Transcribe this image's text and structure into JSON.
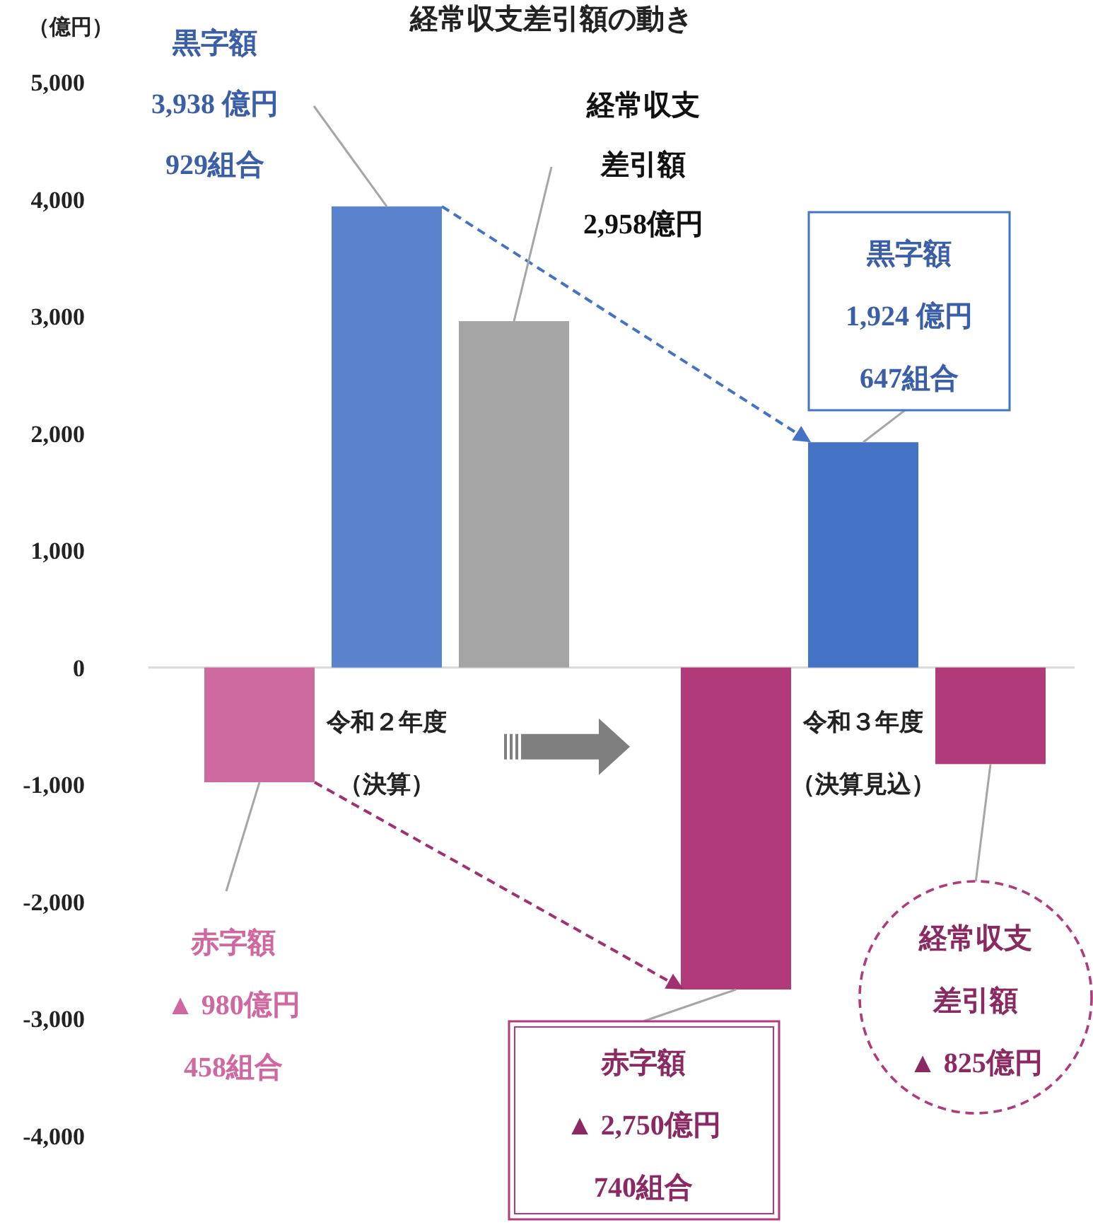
{
  "chart_data": {
    "type": "bar",
    "title": "経常収支差引額の動き",
    "ylabel": "（億円）",
    "categories": [
      "令和２年度（決算）",
      "令和３年度（決算見込）"
    ],
    "series": [
      {
        "colors": [
          "#cf6aa0",
          "#b03a7a"
        ],
        "values": [
          -980,
          -2750
        ]
      },
      {
        "colors": [
          "#5b82cc",
          "#4472c4"
        ],
        "values": [
          3938,
          1924
        ]
      },
      {
        "colors": [
          "#a5a5a5",
          "#b03a7a"
        ],
        "values": [
          2958,
          -825
        ]
      }
    ],
    "ylim": [
      -4000,
      5000
    ],
    "yticks": [
      {
        "value": -4000,
        "label": "-4,000"
      },
      {
        "value": -3000,
        "label": "-3,000"
      },
      {
        "value": -2000,
        "label": "-2,000"
      },
      {
        "value": -1000,
        "label": "-1,000"
      },
      0,
      {
        "value": 1000,
        "label": "1,000"
      },
      {
        "value": 2000,
        "label": "2,000"
      },
      {
        "value": 3000,
        "label": "3,000"
      },
      {
        "value": 4000,
        "label": "4,000"
      },
      {
        "value": 5000,
        "label": "5,000"
      }
    ],
    "ref_lines": [
      {
        "axis": "y",
        "value": 0,
        "color": "#d9d9d9"
      }
    ],
    "annotations": [
      {
        "text": "黒字額\n3,938 億円\n929組合",
        "x": "令和２年度（決算）",
        "y": 3938
      },
      "経常収支差引額\n2,958億円",
      "赤字額\n▲ 980億円\n458組合",
      {
        "text": "黒字額\n1,924 億円\n647組合",
        "x": "令和３年度（決算見込）",
        "y": 1924
      },
      "赤字額\n▲ 2,750億円\n740組合",
      "経常収支差引額\n▲ 825億円"
    ]
  }
}
